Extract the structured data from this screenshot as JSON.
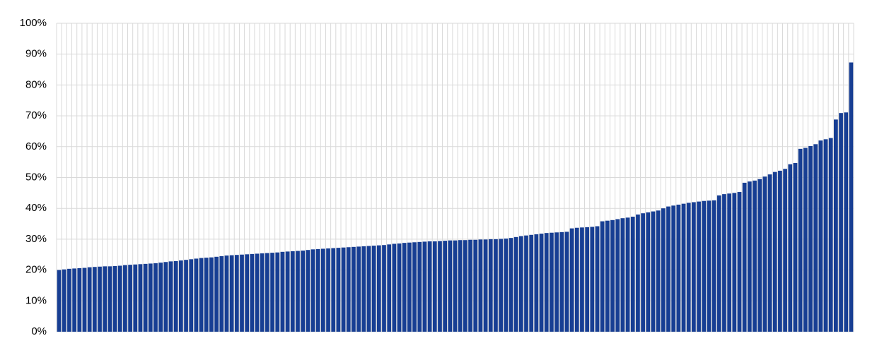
{
  "chart_data": {
    "type": "bar",
    "categories": [
      null,
      null,
      null,
      null,
      null,
      null,
      null,
      null,
      null,
      null,
      null,
      null,
      null,
      null,
      null,
      null,
      null,
      null,
      null,
      null,
      null,
      null,
      null,
      null,
      null,
      null,
      null,
      null,
      null,
      null,
      null,
      null,
      null,
      null,
      null,
      null,
      null,
      null,
      null,
      null,
      null,
      null,
      null,
      null,
      null,
      null,
      null,
      null,
      null,
      null,
      null,
      null,
      null,
      null,
      null,
      null,
      null,
      null,
      null,
      null,
      null,
      null,
      null,
      null,
      null,
      null,
      null,
      null,
      null,
      null,
      null,
      null,
      null,
      null,
      null,
      null,
      null,
      null,
      null,
      null,
      null,
      null,
      null,
      null,
      null,
      null,
      null,
      null,
      null,
      null,
      null,
      null,
      null,
      null,
      null,
      null,
      null,
      null,
      null,
      null,
      null,
      null,
      null,
      null,
      null,
      null,
      null,
      null,
      null,
      null,
      null,
      null,
      null,
      null,
      null,
      null,
      null,
      null,
      null,
      null,
      null,
      null,
      null,
      null,
      null,
      null,
      null,
      null,
      null,
      null,
      null,
      null,
      null,
      null,
      null,
      null,
      null,
      null,
      null,
      null,
      null,
      null,
      null,
      null,
      null,
      null,
      null,
      null,
      null,
      null,
      null,
      null,
      null,
      null,
      null,
      null,
      null
    ],
    "values": [
      20.0,
      20.2,
      20.4,
      20.5,
      20.6,
      20.7,
      20.9,
      21.0,
      21.1,
      21.2,
      21.2,
      21.3,
      21.4,
      21.6,
      21.7,
      21.8,
      21.9,
      22.0,
      22.1,
      22.2,
      22.4,
      22.6,
      22.8,
      22.9,
      23.1,
      23.3,
      23.5,
      23.7,
      23.9,
      24.0,
      24.1,
      24.3,
      24.5,
      24.7,
      24.8,
      24.9,
      25.0,
      25.1,
      25.2,
      25.3,
      25.4,
      25.5,
      25.6,
      25.7,
      25.9,
      26.0,
      26.1,
      26.2,
      26.3,
      26.5,
      26.7,
      26.8,
      26.9,
      27.0,
      27.1,
      27.2,
      27.3,
      27.4,
      27.5,
      27.6,
      27.7,
      27.8,
      27.9,
      28.0,
      28.1,
      28.3,
      28.5,
      28.6,
      28.8,
      28.9,
      29.0,
      29.1,
      29.2,
      29.3,
      29.3,
      29.4,
      29.5,
      29.6,
      29.6,
      29.7,
      29.7,
      29.8,
      29.8,
      29.9,
      29.9,
      30.0,
      30.0,
      30.1,
      30.2,
      30.4,
      30.7,
      31.0,
      31.2,
      31.4,
      31.6,
      31.8,
      32.0,
      32.1,
      32.2,
      32.3,
      32.4,
      33.5,
      33.7,
      33.8,
      33.9,
      34.0,
      34.2,
      35.8,
      36.0,
      36.2,
      36.5,
      36.8,
      37.0,
      37.3,
      38.0,
      38.4,
      38.7,
      39.0,
      39.3,
      40.0,
      40.6,
      40.9,
      41.2,
      41.5,
      41.8,
      42.0,
      42.2,
      42.4,
      42.5,
      42.6,
      44.2,
      44.6,
      44.8,
      45.0,
      45.3,
      48.3,
      48.7,
      49.0,
      49.5,
      50.3,
      51.0,
      51.8,
      52.2,
      52.8,
      54.3,
      54.7,
      59.3,
      59.6,
      60.2,
      60.8,
      62.0,
      62.4,
      62.8,
      68.8,
      70.9,
      71.1,
      87.3
    ],
    "color": "#173e93",
    "ylim": [
      0,
      100
    ],
    "yticks": [
      {
        "value": 0,
        "label": "0%"
      },
      {
        "value": 10,
        "label": "10%"
      },
      {
        "value": 20,
        "label": "20%"
      },
      {
        "value": 30,
        "label": "30%"
      },
      {
        "value": 40,
        "label": "40%"
      },
      {
        "value": 50,
        "label": "50%"
      },
      {
        "value": 60,
        "label": "60%"
      },
      {
        "value": 70,
        "label": "70%"
      },
      {
        "value": 80,
        "label": "80%"
      },
      {
        "value": 90,
        "label": "90%"
      },
      {
        "value": 100,
        "label": "100%"
      }
    ],
    "grid": true
  }
}
